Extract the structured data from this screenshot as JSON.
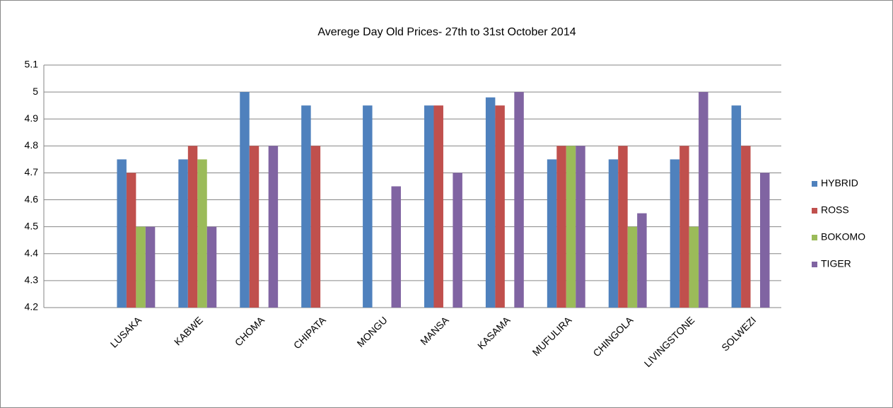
{
  "chart_data": {
    "type": "bar",
    "title": "Averege Day Old Prices- 27th to 31st October 2014",
    "categories": [
      null,
      "LUSAKA",
      "KABWE",
      "CHOMA",
      "CHIPATA",
      "MONGU",
      "MANSA",
      "KASAMA",
      "MUFULIRA",
      "CHINGOLA",
      "LIVINGSTONE",
      "SOLWEZI"
    ],
    "series": [
      {
        "name": "HYBRID",
        "color": "#4f81bd",
        "values": [
          null,
          4.75,
          4.75,
          5.0,
          4.95,
          4.95,
          4.95,
          4.98,
          4.75,
          4.75,
          4.75,
          4.95
        ]
      },
      {
        "name": "ROSS",
        "color": "#c0504d",
        "values": [
          null,
          4.7,
          4.8,
          4.8,
          4.8,
          null,
          4.95,
          4.95,
          4.8,
          4.8,
          4.8,
          4.8
        ]
      },
      {
        "name": "BOKOMO",
        "color": "#9bbb59",
        "values": [
          null,
          4.5,
          4.75,
          null,
          null,
          null,
          null,
          null,
          4.8,
          4.5,
          4.5,
          null
        ]
      },
      {
        "name": "TIGER",
        "color": "#8064a2",
        "values": [
          null,
          4.5,
          4.5,
          4.8,
          null,
          4.65,
          4.7,
          5.0,
          4.8,
          4.55,
          5.0,
          4.7
        ]
      }
    ],
    "ylim": [
      4.2,
      5.1
    ],
    "yticks": [
      4.2,
      4.3,
      4.4,
      4.5,
      4.6,
      4.7,
      4.8,
      4.9,
      5,
      5.1
    ],
    "grid": true,
    "legend": "right"
  }
}
